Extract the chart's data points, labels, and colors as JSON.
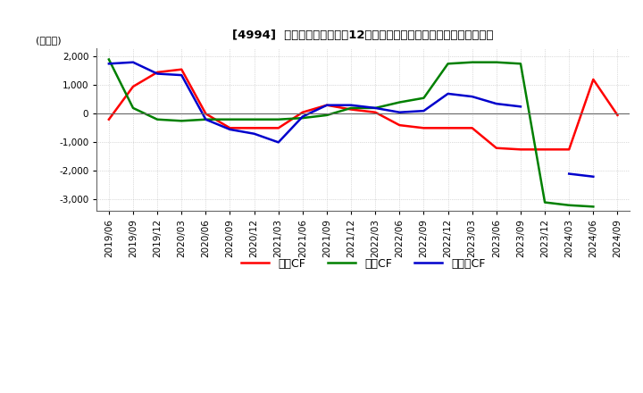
{
  "title": "[4994]  キャッシュフローの12か月移動合計の対前年同期増減額の推移",
  "ylabel": "(百万円)",
  "ylim": [
    -3400,
    2300
  ],
  "yticks": [
    2000,
    1000,
    0,
    -1000,
    -2000,
    -3000
  ],
  "background_color": "#ffffff",
  "grid_color": "#aaaaaa",
  "legend_labels": [
    "営業CF",
    "投資CF",
    "フリーCF"
  ],
  "legend_colors": [
    "#ff0000",
    "#008000",
    "#0000cc"
  ],
  "x_labels": [
    "2019/06",
    "2019/09",
    "2019/12",
    "2020/03",
    "2020/06",
    "2020/09",
    "2020/12",
    "2021/03",
    "2021/06",
    "2021/09",
    "2021/12",
    "2022/03",
    "2022/06",
    "2022/09",
    "2022/12",
    "2023/03",
    "2023/06",
    "2023/09",
    "2023/12",
    "2024/03",
    "2024/06",
    "2024/09"
  ],
  "eigyo": [
    -200,
    950,
    1450,
    1550,
    0,
    -500,
    -500,
    -500,
    50,
    300,
    150,
    50,
    -400,
    -500,
    -500,
    -500,
    -1200,
    -1250,
    -1250,
    -1250,
    1200,
    -50
  ],
  "toshi": [
    1900,
    200,
    -200,
    -250,
    -200,
    -200,
    -200,
    -200,
    -150,
    -50,
    200,
    200,
    400,
    550,
    1750,
    1800,
    1800,
    1750,
    -3100,
    -3200,
    -3250,
    null
  ],
  "free": [
    1750,
    1800,
    1400,
    1350,
    -200,
    -550,
    -700,
    -1000,
    -100,
    300,
    300,
    200,
    50,
    100,
    700,
    600,
    350,
    250,
    null,
    -2100,
    -2200,
    null
  ]
}
